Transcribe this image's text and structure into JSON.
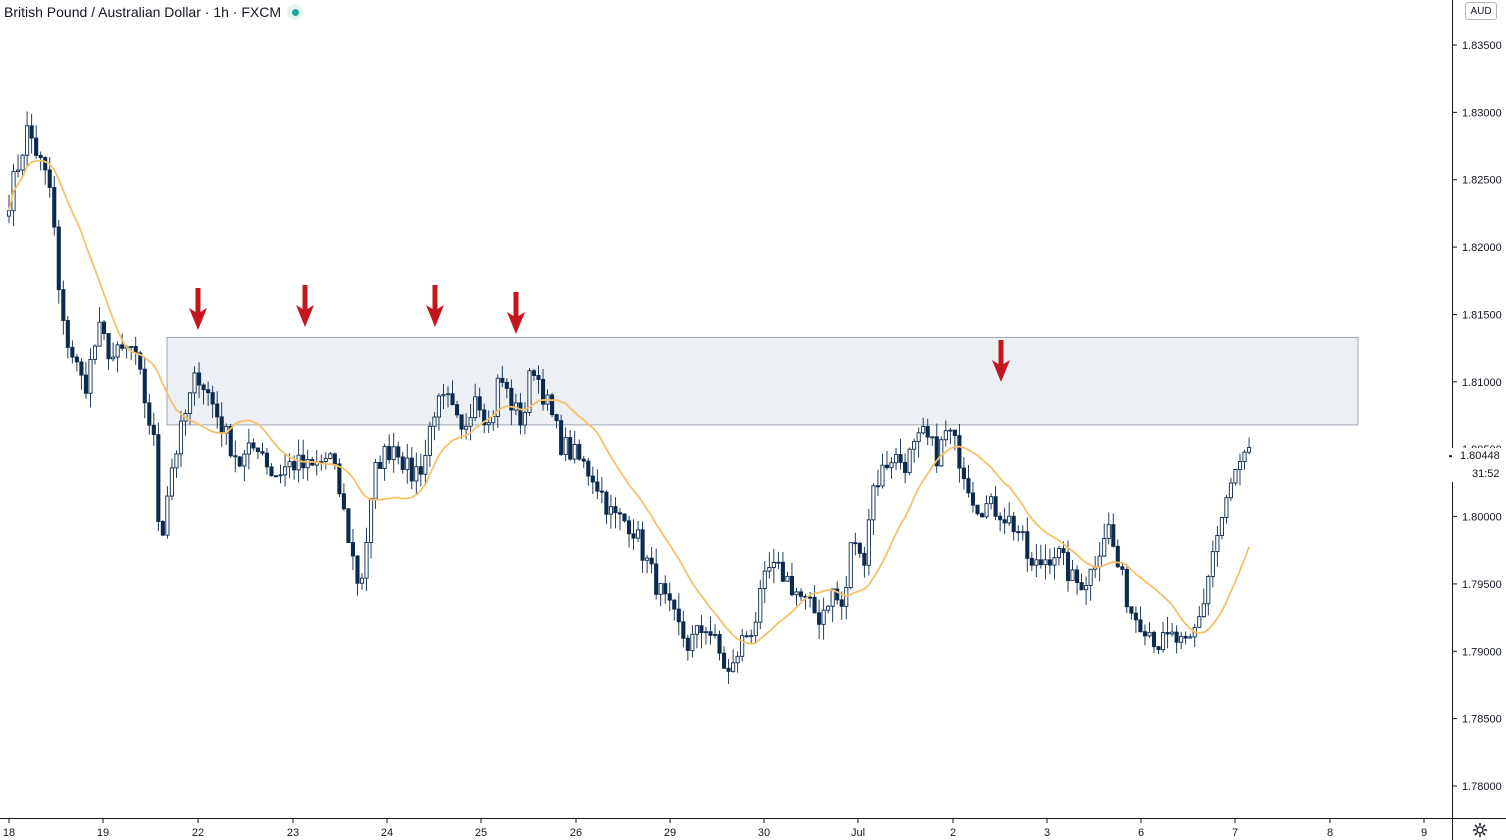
{
  "header": {
    "title": "British Pound / Australian Dollar · 1h · FXCM"
  },
  "currency": "AUD",
  "last_price": "1.80448",
  "countdown": "31:52",
  "colors": {
    "candle": "#0c2a4f",
    "ma": "#f5c26b",
    "zone_fill": "#e9edf3",
    "zone_stroke": "#8a93a3",
    "arrow": "#c4161c",
    "axis": "#131722"
  },
  "icons": {
    "status": "live-status-dot-icon",
    "settings": "gear-icon"
  },
  "chart_data": {
    "type": "candlestick",
    "ylim": [
      1.776,
      1.836
    ],
    "y_ticks": [
      "1.83500",
      "1.83000",
      "1.82500",
      "1.82000",
      "1.81500",
      "1.81000",
      "1.80500",
      "1.80000",
      "1.79500",
      "1.79000",
      "1.78500",
      "1.78000"
    ],
    "x_ticks": [
      "18",
      "19",
      "22",
      "23",
      "24",
      "25",
      "26",
      "29",
      "30",
      "Jul",
      "2",
      "3",
      "6",
      "7",
      "8",
      "9"
    ],
    "resistance_zone": {
      "top": 1.8133,
      "bottom": 1.8068
    },
    "resistance_tests": 5,
    "anchors": [
      [
        18.0,
        1.8236
      ],
      [
        18.2,
        1.8288
      ],
      [
        18.45,
        1.824
      ],
      [
        18.55,
        1.8145
      ],
      [
        18.8,
        1.8095
      ],
      [
        18.95,
        1.8138
      ],
      [
        19.1,
        1.8118
      ],
      [
        19.3,
        1.8125
      ],
      [
        19.4,
        1.81
      ],
      [
        19.55,
        1.805
      ],
      [
        19.6,
        1.7975
      ],
      [
        19.7,
        1.803
      ],
      [
        19.85,
        1.807
      ],
      [
        20.0,
        1.8108
      ],
      [
        20.15,
        1.8085
      ],
      [
        20.3,
        1.806
      ],
      [
        20.45,
        1.804
      ],
      [
        20.65,
        1.8055
      ],
      [
        20.8,
        1.803
      ],
      [
        21.0,
        1.804
      ],
      [
        21.2,
        1.8035
      ],
      [
        21.4,
        1.8045
      ],
      [
        21.5,
        1.802
      ],
      [
        21.6,
        1.7985
      ],
      [
        21.72,
        1.7945
      ],
      [
        21.9,
        1.804
      ],
      [
        22.1,
        1.8055
      ],
      [
        22.25,
        1.803
      ],
      [
        22.4,
        1.804
      ],
      [
        22.5,
        1.808
      ],
      [
        22.65,
        1.8085
      ],
      [
        22.8,
        1.806
      ],
      [
        22.95,
        1.8095
      ],
      [
        23.1,
        1.8065
      ],
      [
        23.2,
        1.8105
      ],
      [
        23.35,
        1.808
      ],
      [
        23.45,
        1.807
      ],
      [
        23.55,
        1.8115
      ],
      [
        23.7,
        1.8085
      ],
      [
        23.85,
        1.8055
      ],
      [
        24.0,
        1.8045
      ],
      [
        24.2,
        1.803
      ],
      [
        24.4,
        1.8
      ],
      [
        24.6,
        1.7995
      ],
      [
        24.8,
        1.796
      ],
      [
        25.0,
        1.793
      ],
      [
        25.2,
        1.7905
      ],
      [
        25.4,
        1.792
      ],
      [
        25.55,
        1.7895
      ],
      [
        25.65,
        1.788
      ],
      [
        25.75,
        1.7905
      ],
      [
        25.9,
        1.792
      ],
      [
        26.05,
        1.796
      ],
      [
        26.2,
        1.7958
      ],
      [
        26.45,
        1.7935
      ],
      [
        26.6,
        1.7925
      ],
      [
        26.72,
        1.7945
      ],
      [
        26.85,
        1.793
      ],
      [
        26.95,
        1.799
      ],
      [
        27.05,
        1.796
      ],
      [
        27.15,
        1.802
      ],
      [
        27.35,
        1.8045
      ],
      [
        27.5,
        1.804
      ],
      [
        27.7,
        1.806
      ],
      [
        27.85,
        1.8045
      ],
      [
        27.95,
        1.8065
      ],
      [
        28.05,
        1.805
      ],
      [
        28.15,
        1.803
      ],
      [
        28.25,
        1.801
      ],
      [
        28.5,
        1.8005
      ],
      [
        28.7,
        1.799
      ],
      [
        28.85,
        1.796
      ],
      [
        29.0,
        1.797
      ],
      [
        29.1,
        1.7975
      ],
      [
        29.3,
        1.795
      ],
      [
        29.45,
        1.7955
      ],
      [
        29.65,
        1.7995
      ],
      [
        29.75,
        1.7965
      ],
      [
        29.9,
        1.793
      ],
      [
        30.05,
        1.792
      ],
      [
        30.2,
        1.7905
      ],
      [
        30.35,
        1.791
      ],
      [
        30.5,
        1.79
      ],
      [
        30.65,
        1.793
      ],
      [
        30.75,
        1.797
      ],
      [
        30.85,
        1.7995
      ],
      [
        30.95,
        1.802
      ],
      [
        31.0,
        1.8032
      ],
      [
        31.15,
        1.8045
      ]
    ],
    "ma_description": "moving average overlay"
  }
}
